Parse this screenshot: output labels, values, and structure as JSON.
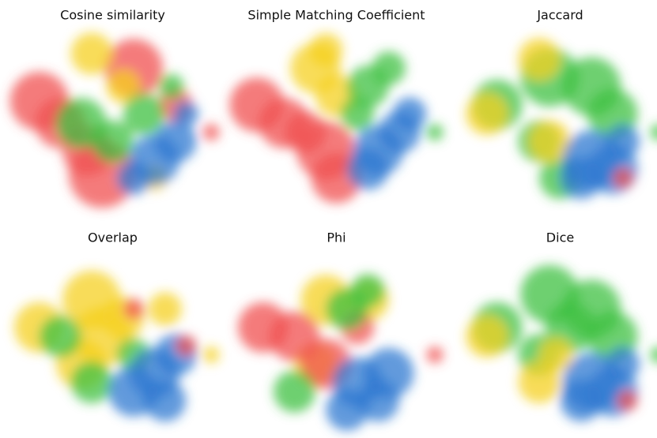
{
  "chart_data": [
    {
      "type": "scatter",
      "title": "Cosine similarity",
      "xlim": [
        0,
        100
      ],
      "ylim": [
        0,
        100
      ],
      "series": [
        {
          "color": "#f05050",
          "x": [
            15,
            25,
            45,
            38,
            60,
            80,
            97
          ],
          "y": [
            62,
            50,
            22,
            35,
            80,
            60,
            45
          ],
          "sizes": [
            14,
            12,
            16,
            12,
            14,
            8,
            4
          ]
        },
        {
          "color": "#f5d020",
          "x": [
            40,
            55,
            70
          ],
          "y": [
            88,
            70,
            20
          ],
          "sizes": [
            10,
            8,
            6
          ]
        },
        {
          "color": "#3cc040",
          "x": [
            35,
            50,
            65,
            78
          ],
          "y": [
            50,
            40,
            55,
            70
          ],
          "sizes": [
            12,
            10,
            10,
            6
          ]
        },
        {
          "color": "#2f78d0",
          "x": [
            70,
            80,
            85,
            60
          ],
          "y": [
            30,
            40,
            55,
            20
          ],
          "sizes": [
            12,
            10,
            6,
            8
          ]
        }
      ]
    },
    {
      "type": "scatter",
      "title": "Simple Matching Coefficient",
      "xlim": [
        0,
        100
      ],
      "ylim": [
        0,
        100
      ],
      "series": [
        {
          "color": "#f05050",
          "x": [
            12,
            25,
            45,
            50,
            35
          ],
          "y": [
            60,
            50,
            35,
            20,
            45
          ],
          "sizes": [
            13,
            12,
            14,
            12,
            10
          ]
        },
        {
          "color": "#f5d020",
          "x": [
            40,
            50,
            45
          ],
          "y": [
            80,
            65,
            90
          ],
          "sizes": [
            12,
            10,
            8
          ]
        },
        {
          "color": "#3cc040",
          "x": [
            65,
            75,
            60,
            97
          ],
          "y": [
            70,
            80,
            55,
            45
          ],
          "sizes": [
            10,
            8,
            8,
            4
          ]
        },
        {
          "color": "#2f78d0",
          "x": [
            70,
            80,
            65,
            85
          ],
          "y": [
            35,
            45,
            25,
            55
          ],
          "sizes": [
            12,
            10,
            10,
            8
          ]
        }
      ]
    },
    {
      "type": "scatter",
      "title": "Jaccard",
      "xlim": [
        0,
        100
      ],
      "ylim": [
        0,
        100
      ],
      "series": [
        {
          "color": "#3cc040",
          "x": [
            20,
            45,
            65,
            75,
            40,
            50,
            97
          ],
          "y": [
            60,
            75,
            70,
            55,
            40,
            20,
            45
          ],
          "sizes": [
            12,
            14,
            14,
            12,
            10,
            10,
            4
          ]
        },
        {
          "color": "#f5d020",
          "x": [
            15,
            40,
            45
          ],
          "y": [
            55,
            85,
            40
          ],
          "sizes": [
            10,
            10,
            10
          ]
        },
        {
          "color": "#2f78d0",
          "x": [
            65,
            75,
            60,
            80
          ],
          "y": [
            30,
            25,
            20,
            40
          ],
          "sizes": [
            14,
            12,
            10,
            8
          ]
        },
        {
          "color": "#f05050",
          "x": [
            80
          ],
          "y": [
            20
          ],
          "sizes": [
            5
          ]
        }
      ]
    },
    {
      "type": "scatter",
      "title": "Overlap",
      "xlim": [
        0,
        100
      ],
      "ylim": [
        0,
        100
      ],
      "series": [
        {
          "color": "#f5d020",
          "x": [
            15,
            40,
            45,
            35,
            55,
            75,
            97
          ],
          "y": [
            60,
            75,
            55,
            40,
            65,
            70,
            45
          ],
          "sizes": [
            12,
            14,
            14,
            12,
            10,
            8,
            4
          ]
        },
        {
          "color": "#3cc040",
          "x": [
            25,
            40,
            60
          ],
          "y": [
            55,
            30,
            45
          ],
          "sizes": [
            10,
            10,
            8
          ]
        },
        {
          "color": "#2f78d0",
          "x": [
            60,
            70,
            80,
            75
          ],
          "y": [
            25,
            35,
            45,
            20
          ],
          "sizes": [
            12,
            12,
            10,
            10
          ]
        },
        {
          "color": "#f05050",
          "x": [
            60,
            85
          ],
          "y": [
            70,
            50
          ],
          "sizes": [
            5,
            5
          ]
        }
      ]
    },
    {
      "type": "scatter",
      "title": "Phi",
      "xlim": [
        0,
        100
      ],
      "ylim": [
        0,
        100
      ],
      "series": [
        {
          "color": "#f5d020",
          "x": [
            45,
            40,
            65
          ],
          "y": [
            75,
            40,
            75
          ],
          "sizes": [
            12,
            10,
            10
          ]
        },
        {
          "color": "#f05050",
          "x": [
            15,
            30,
            45,
            60,
            97
          ],
          "y": [
            60,
            55,
            40,
            60,
            45
          ],
          "sizes": [
            12,
            12,
            12,
            8,
            4
          ]
        },
        {
          "color": "#3cc040",
          "x": [
            30,
            55,
            65
          ],
          "y": [
            25,
            70,
            80
          ],
          "sizes": [
            10,
            10,
            8
          ]
        },
        {
          "color": "#2f78d0",
          "x": [
            60,
            75,
            70,
            55
          ],
          "y": [
            30,
            35,
            20,
            15
          ],
          "sizes": [
            12,
            12,
            10,
            10
          ]
        }
      ]
    },
    {
      "type": "scatter",
      "title": "Dice",
      "xlim": [
        0,
        100
      ],
      "ylim": [
        0,
        100
      ],
      "series": [
        {
          "color": "#3cc040",
          "x": [
            20,
            45,
            65,
            75,
            40,
            55,
            97
          ],
          "y": [
            60,
            78,
            70,
            55,
            45,
            60,
            45
          ],
          "sizes": [
            12,
            14,
            14,
            12,
            10,
            12,
            4
          ]
        },
        {
          "color": "#f5d020",
          "x": [
            15,
            40,
            48
          ],
          "y": [
            55,
            30,
            45
          ],
          "sizes": [
            10,
            10,
            8
          ]
        },
        {
          "color": "#2f78d0",
          "x": [
            65,
            75,
            60,
            80
          ],
          "y": [
            30,
            25,
            20,
            40
          ],
          "sizes": [
            14,
            12,
            10,
            8
          ]
        },
        {
          "color": "#f05050",
          "x": [
            82
          ],
          "y": [
            20
          ],
          "sizes": [
            5
          ]
        }
      ]
    }
  ]
}
